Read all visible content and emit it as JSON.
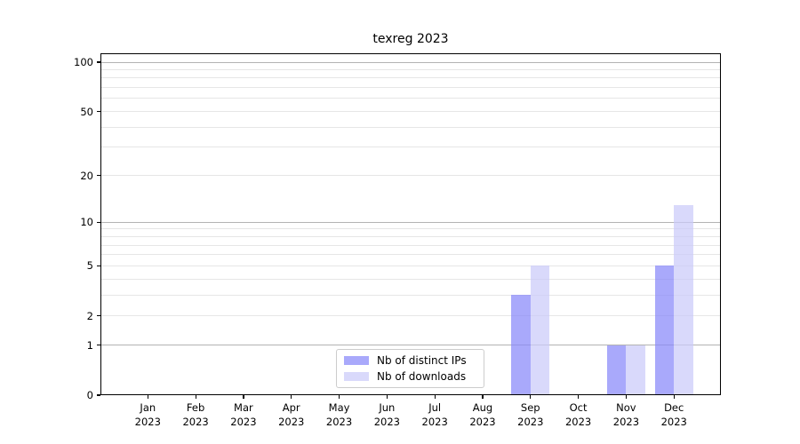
{
  "chart_data": {
    "type": "bar",
    "title": "texreg 2023",
    "categories": [
      "Jan\n2023",
      "Feb\n2023",
      "Mar\n2023",
      "Apr\n2023",
      "May\n2023",
      "Jun\n2023",
      "Jul\n2023",
      "Aug\n2023",
      "Sep\n2023",
      "Oct\n2023",
      "Nov\n2023",
      "Dec\n2023"
    ],
    "series": [
      {
        "name": "Nb of distinct IPs",
        "color": "rgba(136,136,249,0.72)",
        "values": [
          0,
          0,
          0,
          0,
          0,
          0,
          0,
          0,
          3,
          0,
          1,
          5
        ]
      },
      {
        "name": "Nb of downloads",
        "color": "rgba(202,202,249,0.72)",
        "values": [
          0,
          0,
          0,
          0,
          0,
          0,
          0,
          0,
          5,
          0,
          1,
          13
        ]
      }
    ],
    "xlabel": "",
    "ylabel": "",
    "yscale": "log1p",
    "yticks": [
      0,
      1,
      2,
      5,
      10,
      20,
      50,
      100
    ],
    "yticks_minor": [
      3,
      4,
      6,
      7,
      8,
      9,
      30,
      40,
      60,
      70,
      80,
      90
    ],
    "ylim": [
      0,
      113
    ],
    "grid": "on",
    "legend_position": "lower center",
    "colors": {
      "grid_decade": "#b3b3b3",
      "grid_minor": "#e6e6e6",
      "axis": "#000000",
      "background": "#ffffff"
    }
  }
}
